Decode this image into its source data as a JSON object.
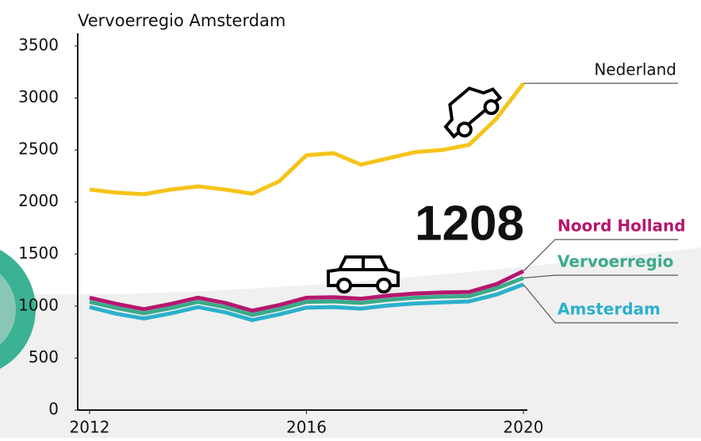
{
  "chart_data": {
    "type": "line",
    "title": "Vervoerregio Amsterdam",
    "annotation": "1208",
    "x": [
      2012,
      2012.5,
      2013,
      2013.5,
      2014,
      2014.5,
      2015,
      2015.5,
      2016,
      2016.5,
      2017,
      2017.5,
      2018,
      2018.5,
      2019,
      2019.5,
      2020
    ],
    "xlim": [
      2012,
      2020
    ],
    "xticks": [
      2012,
      2016,
      2020
    ],
    "ylim": [
      0,
      3500
    ],
    "yticks": [
      0,
      500,
      1000,
      1500,
      2000,
      2500,
      3000,
      3500
    ],
    "series": [
      {
        "name": "Nederland",
        "color": "#f6c419",
        "values": [
          2120,
          2090,
          2075,
          2120,
          2150,
          2120,
          2080,
          2200,
          2450,
          2470,
          2360,
          2420,
          2480,
          2500,
          2550,
          2800,
          3140
        ]
      },
      {
        "name": "Noord Holland",
        "color": "#b5176e",
        "values": [
          1080,
          1020,
          970,
          1020,
          1080,
          1030,
          955,
          1010,
          1080,
          1085,
          1070,
          1100,
          1120,
          1130,
          1135,
          1210,
          1335
        ]
      },
      {
        "name": "Vervoerregio",
        "color": "#3aaa8a",
        "values": [
          1040,
          980,
          930,
          980,
          1040,
          990,
          915,
          970,
          1040,
          1045,
          1030,
          1060,
          1080,
          1090,
          1095,
          1170,
          1270
        ]
      },
      {
        "name": "Amsterdam",
        "color": "#2cb0cc",
        "values": [
          990,
          925,
          880,
          930,
          990,
          940,
          865,
          920,
          985,
          990,
          975,
          1005,
          1025,
          1035,
          1045,
          1110,
          1208
        ]
      }
    ]
  }
}
